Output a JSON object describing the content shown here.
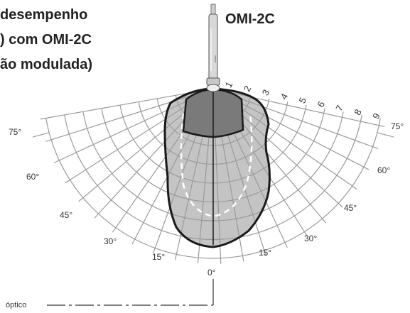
{
  "title_lines": [
    "desempenho",
    "com OMI-2C",
    "ão modulada)"
  ],
  "title_prefix_line2": ")",
  "probe_label": "OMI-2C",
  "probe_model_text": "OMI-2C",
  "axis_label": "óptico",
  "rings": [
    "1",
    "2",
    "3",
    "4",
    "5",
    "6",
    "7",
    "8",
    "9"
  ],
  "angle_labels": {
    "left": [
      "75°",
      "60°",
      "45°",
      "30°",
      "15°"
    ],
    "right": [
      "75°",
      "60°",
      "45°",
      "30°",
      "15°"
    ],
    "center": "0°"
  },
  "colors": {
    "outer_zone": "#c4c4c4",
    "inner_zone": "#7a7a7a",
    "grid": "#9a9a9a",
    "outline": "#1a1a1a"
  }
}
